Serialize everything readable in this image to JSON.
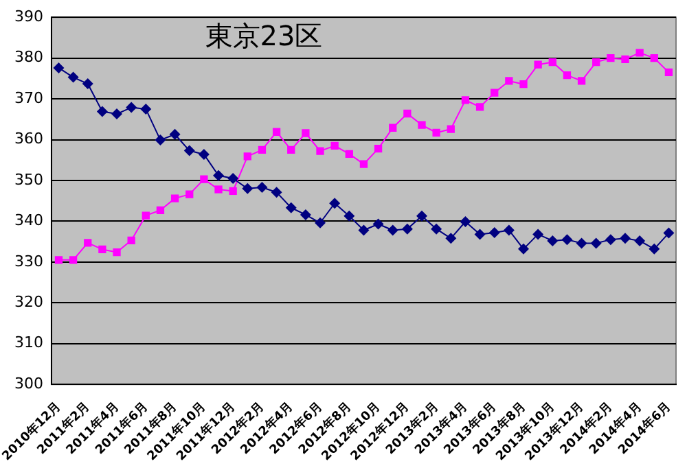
{
  "chart_data": {
    "type": "line",
    "title": "東京23区",
    "categories": [
      "2010年12月",
      null,
      "2011年2月",
      null,
      "2011年4月",
      null,
      "2011年6月",
      null,
      "2011年8月",
      null,
      "2011年10月",
      null,
      "2011年12月",
      null,
      "2012年2月",
      null,
      "2012年4月",
      null,
      "2012年6月",
      null,
      "2012年8月",
      null,
      "2012年10月",
      null,
      "2012年12月",
      null,
      "2013年2月",
      null,
      "2013年4月",
      null,
      "2013年6月",
      null,
      "2013年8月",
      null,
      "2013年10月",
      null,
      "2013年12月",
      null,
      "2014年2月",
      null,
      "2014年4月",
      null,
      "2014年6月"
    ],
    "series": [
      {
        "color": "#000080",
        "marker": "diamond",
        "values": [
          377.6,
          375.3,
          373.7,
          366.9,
          366.3,
          367.9,
          367.5,
          359.9,
          361.3,
          357.3,
          356.4,
          351.2,
          350.5,
          348.0,
          348.3,
          347.1,
          343.3,
          341.6,
          339.6,
          344.4,
          341.3,
          337.8,
          339.3,
          337.8,
          338.1,
          341.3,
          338.1,
          335.8,
          339.9,
          336.8,
          337.2,
          337.8,
          333.2,
          336.8,
          335.2,
          335.5,
          334.6,
          334.6,
          335.5,
          335.8,
          335.2,
          333.2,
          337.1
        ]
      },
      {
        "color": "#ff00ff",
        "marker": "square",
        "values": [
          330.5,
          330.5,
          334.7,
          333.1,
          332.4,
          335.3,
          341.4,
          342.7,
          345.6,
          346.6,
          350.3,
          347.8,
          347.4,
          355.9,
          357.5,
          361.9,
          357.5,
          361.6,
          357.2,
          358.5,
          356.5,
          354.0,
          357.8,
          362.9,
          366.4,
          363.6,
          361.7,
          362.6,
          369.7,
          368.0,
          371.5,
          374.4,
          373.6,
          378.4,
          379.0,
          375.8,
          374.4,
          379.0,
          380.0,
          379.7,
          381.3,
          380.0,
          376.5
        ]
      }
    ],
    "ylim": [
      300,
      390
    ],
    "yticks": [
      300,
      310,
      320,
      330,
      340,
      350,
      360,
      370,
      380,
      390
    ],
    "grid": "y",
    "legend": false,
    "line_style": "solid"
  }
}
